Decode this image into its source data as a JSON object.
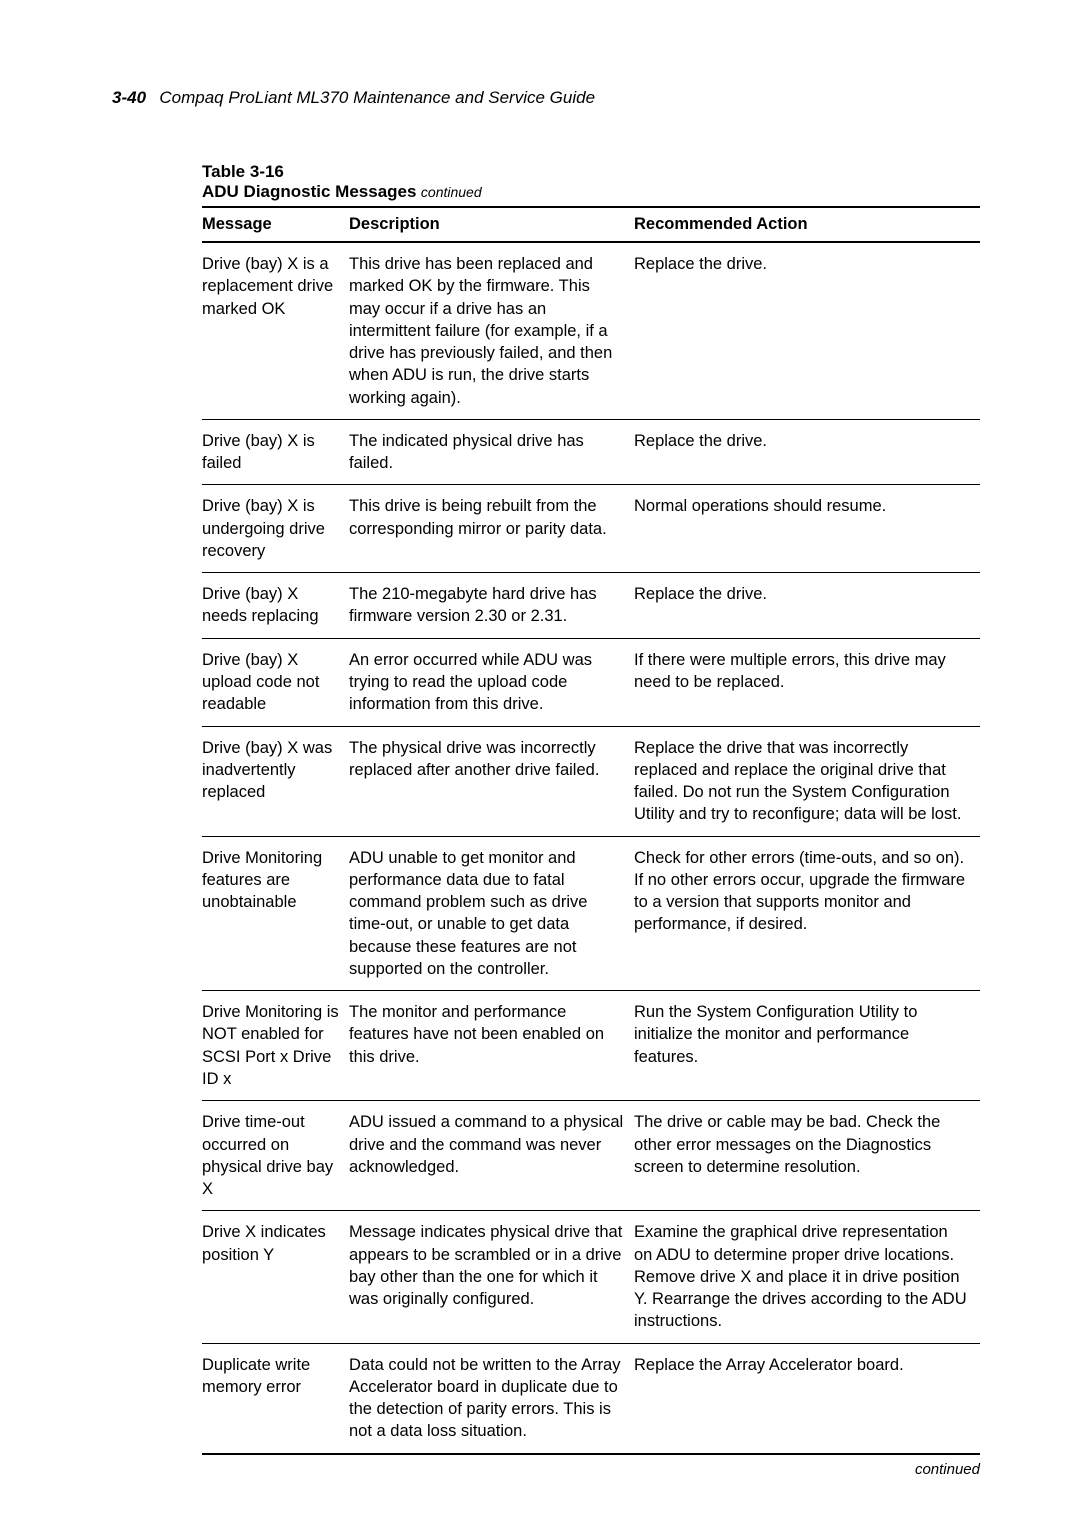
{
  "header": {
    "pageNumber": "3-40",
    "pageTitle": "Compaq ProLiant ML370 Maintenance and Service Guide"
  },
  "table": {
    "number": "Table 3-16",
    "title": "ADU Diagnostic Messages",
    "titleContinued": "continued",
    "columns": {
      "message": "Message",
      "description": "Description",
      "action": "Recommended Action"
    },
    "rows": [
      {
        "message": "Drive (bay) X is a replacement drive marked OK",
        "description": "This drive has been replaced and marked OK by the firmware. This may occur if a drive has an intermittent failure (for example, if a drive has previously failed, and then when ADU is run, the drive starts working again).",
        "action": "Replace the drive."
      },
      {
        "message": "Drive (bay) X is failed",
        "description": "The indicated physical drive has failed.",
        "action": "Replace the drive."
      },
      {
        "message": "Drive (bay) X is undergoing drive recovery",
        "description": "This drive is being rebuilt from the corresponding mirror or parity data.",
        "action": "Normal operations should resume."
      },
      {
        "message": "Drive (bay) X needs replacing",
        "description": "The 210-megabyte hard drive has firmware version 2.30 or 2.31.",
        "action": "Replace the drive."
      },
      {
        "message": "Drive (bay) X upload code not readable",
        "description": "An error occurred while ADU was trying to read the upload code information from this drive.",
        "action": "If there were multiple errors, this drive may need to be replaced."
      },
      {
        "message": "Drive (bay) X was inadvertently replaced",
        "description": "The physical drive was incorrectly replaced after another drive failed.",
        "action": "Replace the drive that was incorrectly replaced and replace the original drive that failed. Do not run the System Configuration Utility and try to reconfigure; data will be lost."
      },
      {
        "message": "Drive Monitoring features are unobtainable",
        "description": "ADU unable to get monitor and performance data due to fatal command problem such as drive time-out, or unable to get data because these features are not supported on the controller.",
        "action": "Check for other errors (time-outs, and so on). If no other errors occur, upgrade the firmware to a version that supports monitor and performance, if desired."
      },
      {
        "message": "Drive Monitoring is NOT enabled for SCSI Port x Drive ID x",
        "description": "The monitor and performance features have not been enabled on this drive.",
        "action": "Run the System Configuration Utility to initialize the monitor and performance features."
      },
      {
        "message": "Drive time-out occurred on physical drive bay X",
        "description": "ADU issued a command to a physical drive and the command was never acknowledged.",
        "action": "The drive or cable may be bad. Check the other error messages on the Diagnostics screen to determine resolution."
      },
      {
        "message": "Drive X indicates position Y",
        "description": "Message indicates physical drive that appears to be scrambled or in a drive bay other than the one for which it was originally configured.",
        "action": "Examine the graphical drive representation on ADU to determine proper drive locations. Remove drive X and place it in drive position Y. Rearrange the drives according to the ADU instructions."
      },
      {
        "message": "Duplicate write memory error",
        "description": "Data could not be written to the Array Accelerator board in duplicate due to the detection of parity errors. This is not a data loss situation.",
        "action": "Replace the Array Accelerator board."
      }
    ],
    "footer": "continued"
  }
}
